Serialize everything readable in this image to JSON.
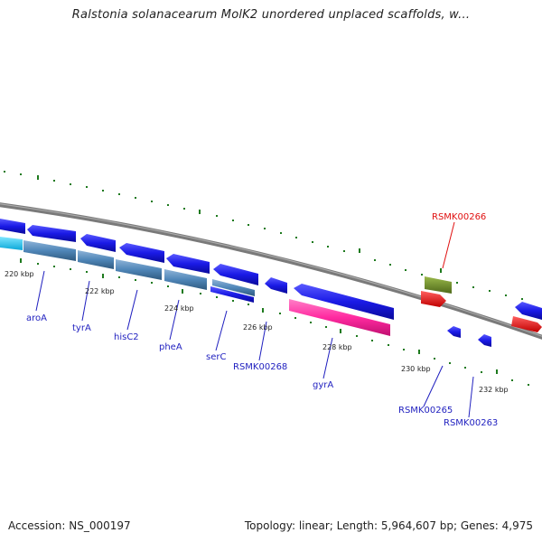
{
  "header": {
    "title": "Ralstonia solanacearum MolK2 unordered unplaced scaffolds, w..."
  },
  "footer": {
    "accession": "Accession: NS_000197",
    "summary": "Topology: linear; Length: 5,964,607 bp; Genes: 4,975"
  },
  "scale": {
    "tick_labels": [
      "220 kbp",
      "222 kbp",
      "224 kbp",
      "226 kbp",
      "228 kbp",
      "230 kbp",
      "232 kbp"
    ]
  },
  "gene_labels": {
    "aroA": "aroA",
    "tyrA": "tyrA",
    "hisC2": "hisC2",
    "pheA": "pheA",
    "serC": "serC",
    "RSMK00268": "RSMK00268",
    "gyrA": "gyrA",
    "RSMK00265": "RSMK00265",
    "RSMK00263": "RSMK00263",
    "RSMK00266": "RSMK00266"
  },
  "colors": {
    "backbone": "#7a7a7a",
    "gene_blue": "#1a1ae6",
    "gene_steel": "#4f86b8",
    "gene_cyan": "#1ac6f0",
    "gene_pink": "#ff2aa0",
    "gene_olive": "#6b8a2a",
    "gene_red": "#ee1010",
    "tick": "#1e7a1e",
    "label_blue": "#1f1fbf",
    "label_red": "#e01010"
  }
}
